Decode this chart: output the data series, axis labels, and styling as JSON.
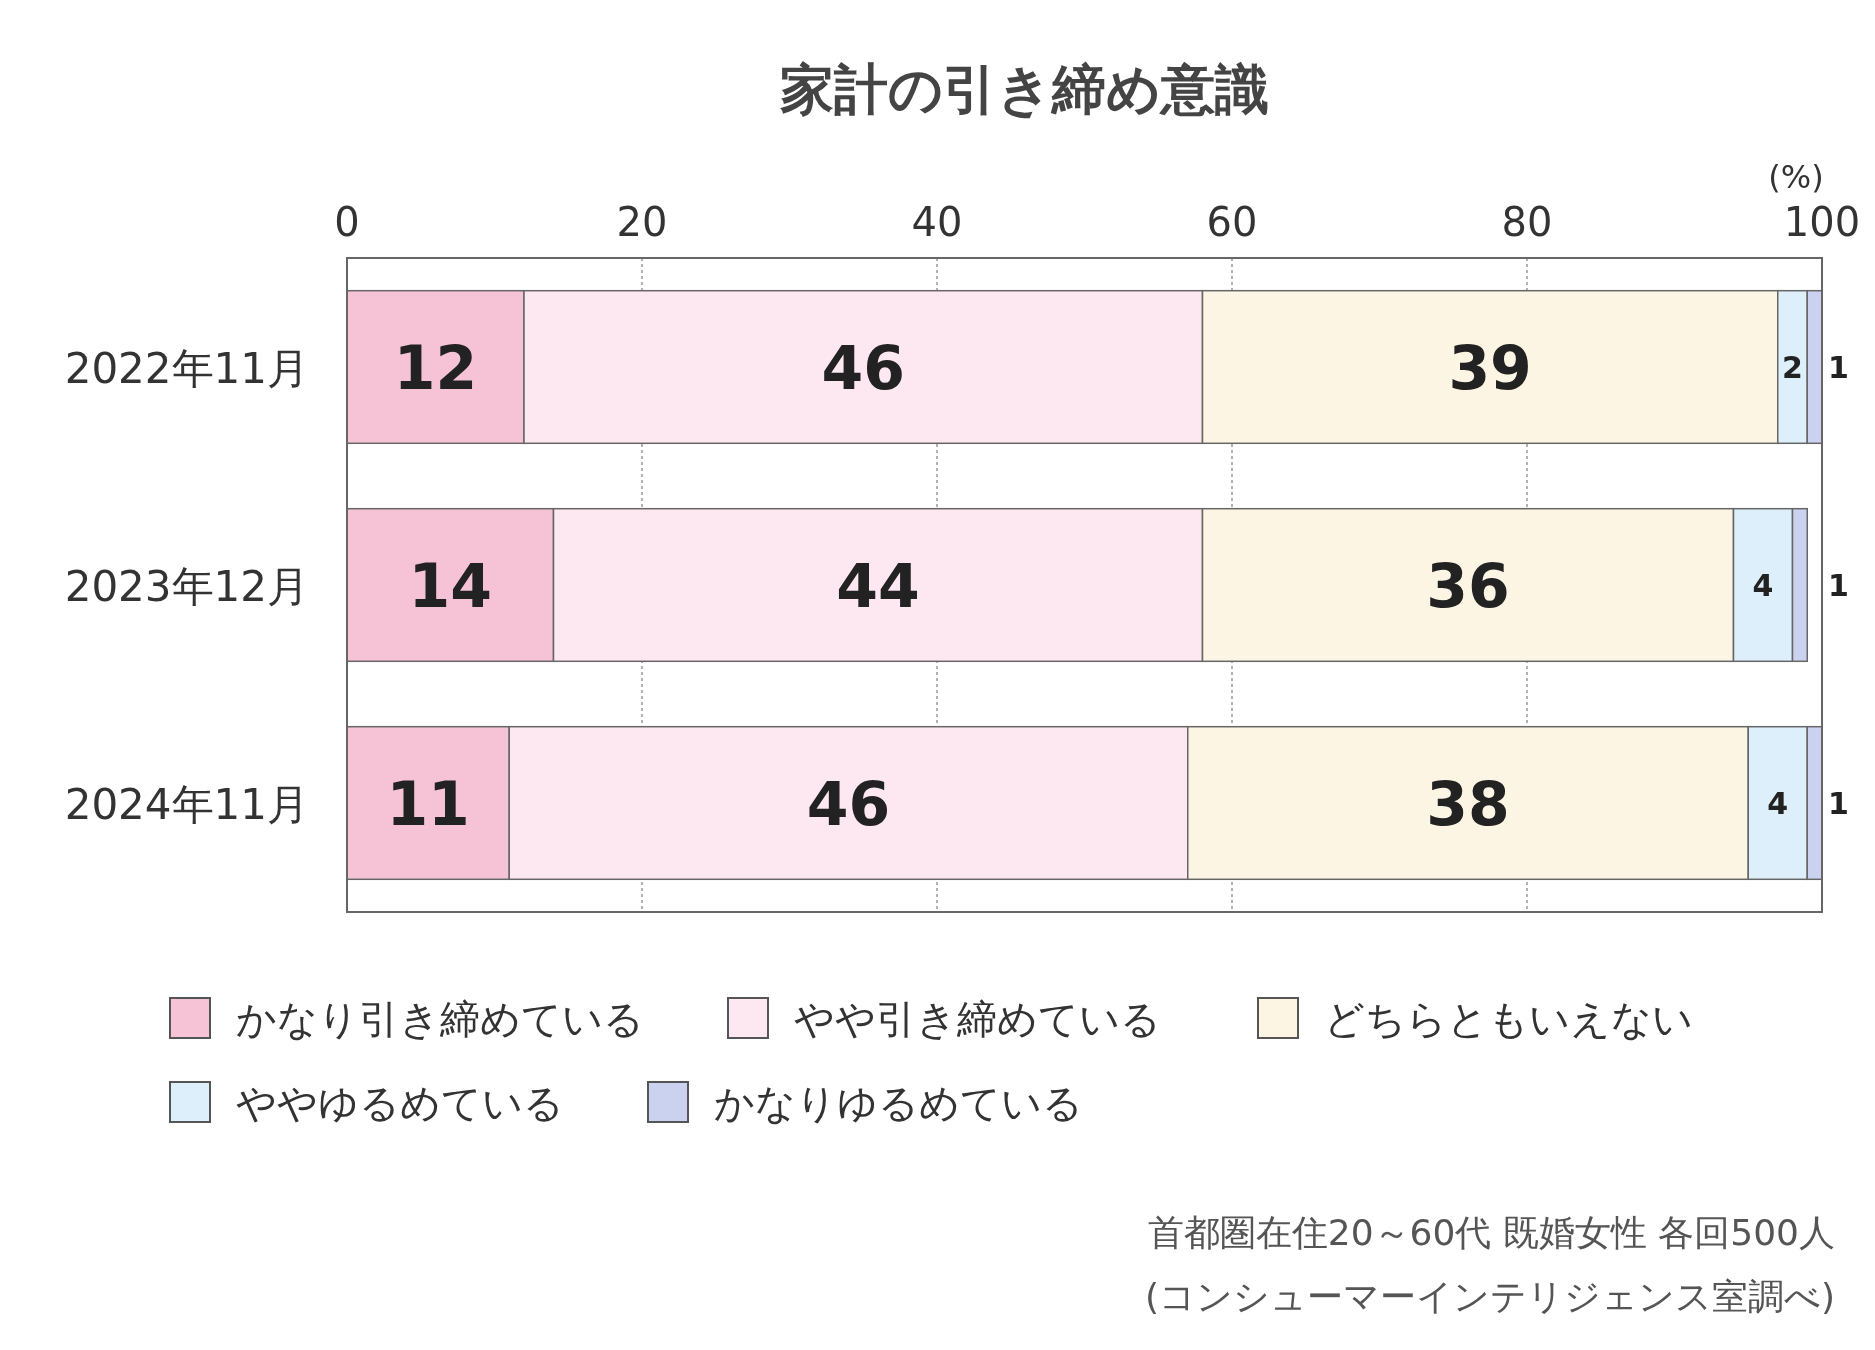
{
  "chart_data": {
    "type": "bar",
    "orientation": "horizontal",
    "stacked": true,
    "title": "家計の引き締め意識",
    "xlabel": "(%)",
    "categories": [
      "2022年11月",
      "2023年12月",
      "2024年11月"
    ],
    "series": [
      {
        "name": "かなり引き締めている",
        "color": "#f5c3d5",
        "values": [
          12,
          14,
          11
        ]
      },
      {
        "name": "やや引き締めている",
        "color": "#fde7f0",
        "values": [
          46,
          44,
          46
        ]
      },
      {
        "name": "どちらともいえない",
        "color": "#fdf5e4",
        "values": [
          39,
          36,
          38
        ]
      },
      {
        "name": "ややゆるめている",
        "color": "#ddeffa",
        "values": [
          2,
          4,
          4
        ]
      },
      {
        "name": "かなりゆるめている",
        "color": "#cbd2f0",
        "values": [
          1,
          1,
          1
        ]
      }
    ],
    "xlim": [
      0,
      100
    ],
    "xticks": [
      0,
      20,
      40,
      60,
      80,
      100
    ],
    "grid": "x",
    "legend": "bottom",
    "data_labels": true,
    "annotations": [
      "首都圏在住20～60代 既婚女性 各回500人",
      "(コンシューマーインテリジェンス室調べ)"
    ]
  }
}
